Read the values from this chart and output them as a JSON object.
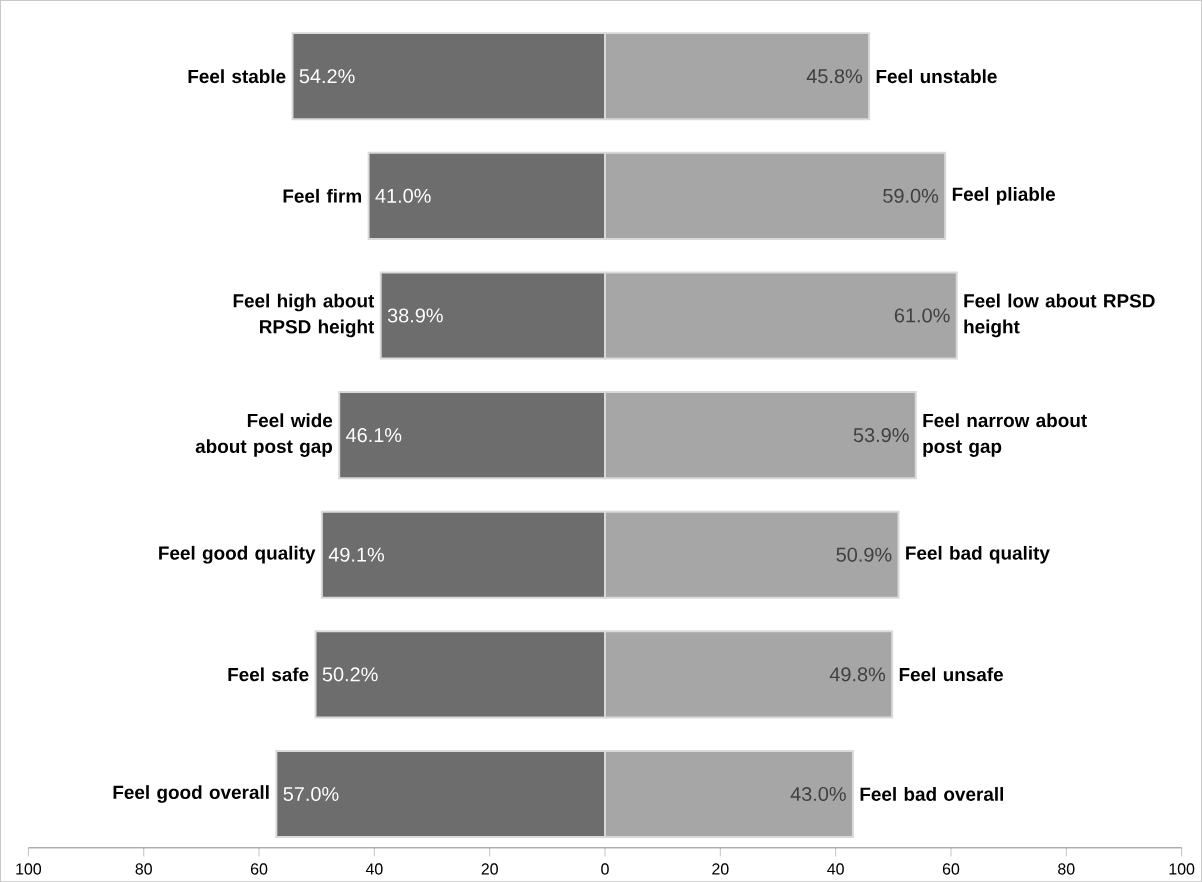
{
  "chart_data": {
    "type": "bar",
    "orientation": "horizontal",
    "categories": [
      "Feel stable",
      "Feel firm",
      "Feel high about RPSD height",
      "Feel wide about post gap",
      "Feel good quality",
      "Feel safe",
      "Feel good overall"
    ],
    "series": [
      {
        "color": "#6d6d6d",
        "values": [
          54.2,
          41.0,
          38.9,
          46.1,
          49.1,
          50.2,
          57.0
        ],
        "base": [
          -54.2,
          -41.0,
          -38.9,
          -46.1,
          -49.1,
          -50.2,
          -57.0
        ],
        "value_labels": [
          "54.2%",
          "41.0%",
          "38.9%",
          "46.1%",
          "49.1%",
          "50.2%",
          "57.0%"
        ]
      },
      {
        "color": "#a6a6a6",
        "values": [
          45.8,
          59.0,
          61.0,
          53.9,
          50.9,
          49.8,
          43.0
        ],
        "value_labels": [
          "45.8%",
          "59.0%",
          "61.0%",
          "53.9%",
          "50.9%",
          "49.8%",
          "43.0%"
        ]
      }
    ],
    "annotations": [
      {
        "text": "Feel unstable",
        "x": 45.8,
        "y": "Feel stable"
      },
      {
        "text": "Feel pliable",
        "x": 59.0,
        "y": "Feel firm"
      },
      {
        "text": "Feel low about RPSD height",
        "x": 61.0,
        "y": "Feel high about RPSD height"
      },
      {
        "text": "Feel narrow about post gap",
        "x": 53.9,
        "y": "Feel wide about post gap"
      },
      {
        "text": "Feel bad quality",
        "x": 50.9,
        "y": "Feel good quality"
      },
      {
        "text": "Feel unsafe",
        "x": 49.8,
        "y": "Feel safe"
      },
      {
        "text": "Feel bad overall",
        "x": 43.0,
        "y": "Feel good overall"
      }
    ],
    "xlim": [
      -100,
      100
    ],
    "xticks": [
      {
        "value": -100,
        "label": "100"
      },
      {
        "value": -80,
        "label": "80"
      },
      {
        "value": -60,
        "label": "60"
      },
      {
        "value": -40,
        "label": "40"
      },
      {
        "value": -20,
        "label": "20"
      },
      0,
      20,
      40,
      60,
      80,
      100
    ],
    "grid": false
  }
}
